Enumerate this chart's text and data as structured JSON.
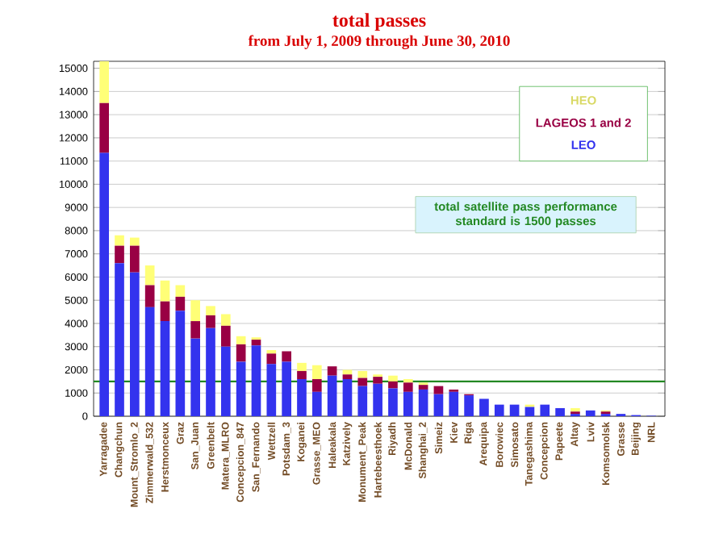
{
  "chart_data": {
    "type": "bar",
    "title": "total passes",
    "subtitle": "from July 1, 2009 through June 30, 2010",
    "categories": [
      "Yarragadee",
      "Changchun",
      "Mount_Stromlo_2",
      "Zimmerwald_532",
      "Herstmonceux",
      "Graz",
      "San_Juan",
      "Greenbelt",
      "Matera_MLRO",
      "Concepcion_847",
      "San_Fernando",
      "Wettzell",
      "Potsdam_3",
      "Koganei",
      "Grasse_MEO",
      "Haleakala",
      "Katzively",
      "Monument_Peak",
      "Hartebeesthoek",
      "Riyadh",
      "McDonald",
      "Shanghai_2",
      "Simeiz",
      "Kiev",
      "Riga",
      "Arequipa",
      "Borowiec",
      "Simosato",
      "Tanegashima",
      "Concepcion",
      "Papeete",
      "Altay",
      "Lviv",
      "Komsomolsk",
      "Grasse",
      "Beijing",
      "NRL"
    ],
    "stacked": true,
    "series": [
      {
        "name": "LEO",
        "color": "#3333ee",
        "values": [
          11350,
          6600,
          6200,
          4700,
          4100,
          4550,
          3350,
          3800,
          3000,
          2350,
          3050,
          2250,
          2350,
          1600,
          1050,
          1750,
          1600,
          1300,
          1400,
          1200,
          1050,
          1150,
          950,
          1050,
          900,
          750,
          500,
          500,
          400,
          500,
          350,
          100,
          250,
          100,
          100,
          50,
          20
        ]
      },
      {
        "name": "LAGEOS 1 and 2",
        "color": "#990044",
        "values": [
          2150,
          750,
          1150,
          950,
          850,
          600,
          750,
          550,
          900,
          750,
          250,
          450,
          450,
          350,
          550,
          400,
          200,
          350,
          300,
          300,
          400,
          200,
          350,
          100,
          50,
          0,
          0,
          0,
          0,
          0,
          0,
          100,
          0,
          100,
          0,
          0,
          0
        ]
      },
      {
        "name": "HEO",
        "color": "#ffff77",
        "values": [
          1800,
          450,
          350,
          850,
          900,
          500,
          900,
          400,
          500,
          350,
          100,
          150,
          0,
          350,
          600,
          0,
          200,
          300,
          100,
          250,
          150,
          100,
          0,
          0,
          0,
          0,
          0,
          0,
          100,
          0,
          0,
          150,
          0,
          50,
          0,
          0,
          0
        ]
      }
    ],
    "ylim": [
      0,
      15300
    ],
    "yticks": [
      0,
      1000,
      2000,
      3000,
      4000,
      5000,
      6000,
      7000,
      8000,
      9000,
      10000,
      11000,
      12000,
      13000,
      14000,
      15000
    ],
    "grid": "y",
    "legend": "top right",
    "ref_lines": [
      {
        "axis": "y",
        "value": 1500,
        "label": "total satellite pass performance standard is 1500 passes",
        "color": "#228822"
      }
    ]
  }
}
